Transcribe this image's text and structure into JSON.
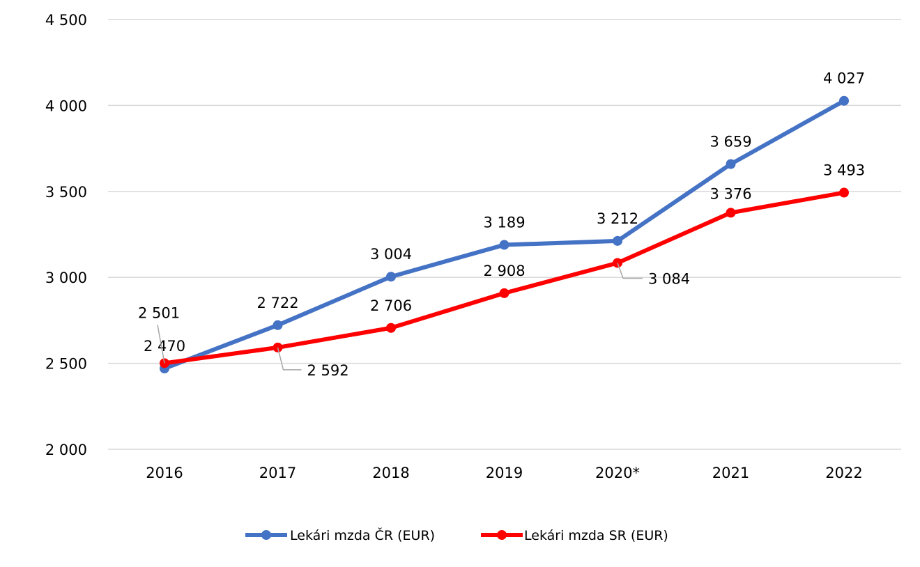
{
  "chart_data": {
    "type": "line",
    "title": "",
    "xlabel": "",
    "ylabel": "",
    "categories": [
      "2016",
      "2017",
      "2018",
      "2019",
      "2020*",
      "2021",
      "2022"
    ],
    "ylim": [
      2000,
      4500
    ],
    "yticks": [
      2000,
      2500,
      3000,
      3500,
      4000,
      4500
    ],
    "ytick_labels": [
      "2 000",
      "2 500",
      "3 000",
      "3 500",
      "4 000",
      "4 500"
    ],
    "grid": true,
    "legend_position": "bottom",
    "series": [
      {
        "name": "Lekári mzda ČR (EUR)",
        "color": "#4472C4",
        "values": [
          2470,
          2722,
          3004,
          3189,
          3212,
          3659,
          4027
        ],
        "labels": [
          "2 470",
          "2 722",
          "3 004",
          "3 189",
          "3 212",
          "3 659",
          "4 027"
        ]
      },
      {
        "name": "Lekári mzda SR (EUR)",
        "color": "#FF0000",
        "values": [
          2501,
          2592,
          2706,
          2908,
          3084,
          3376,
          3493
        ],
        "labels": [
          "2 501",
          "2 592",
          "2 706",
          "2 908",
          "3 084",
          "3 376",
          "3 493"
        ]
      }
    ]
  }
}
